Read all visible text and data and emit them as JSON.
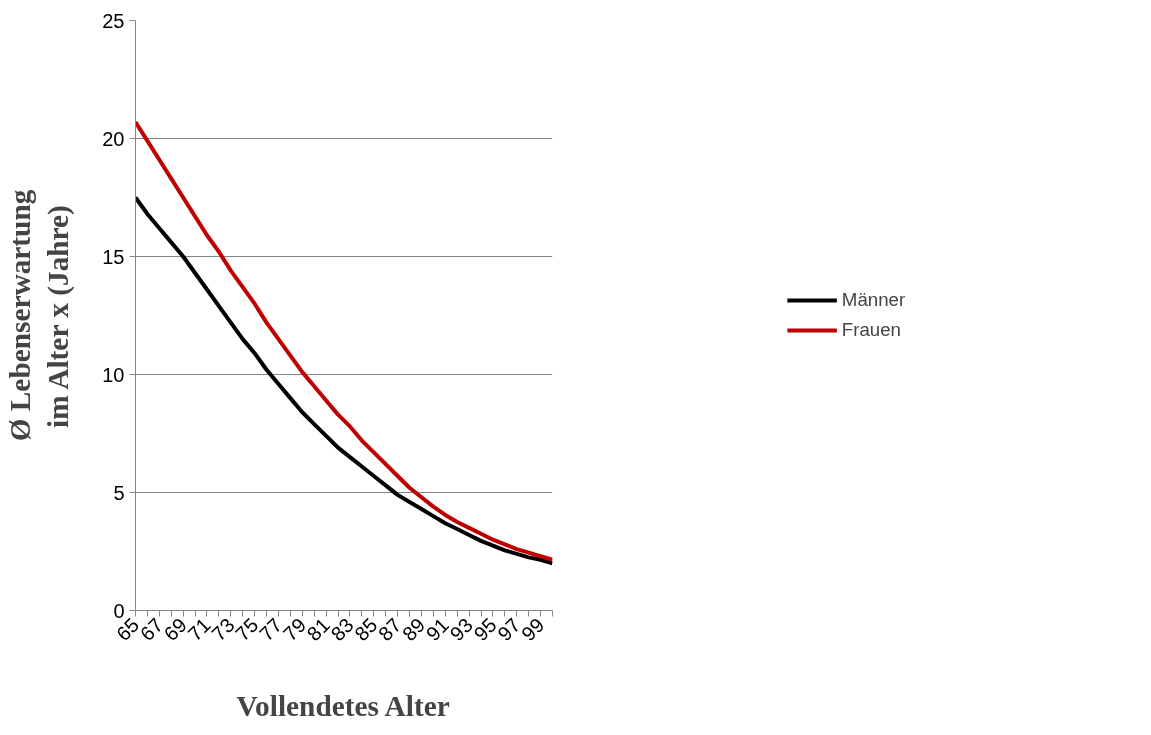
{
  "chart_data": {
    "type": "line",
    "xlabel": "Vollendetes Alter",
    "ylabel": "Ø Lebenserwartung\nim Alter x (Jahre)",
    "categories": [
      "65",
      null,
      "67",
      null,
      "69",
      null,
      "71",
      null,
      "73",
      null,
      "75",
      null,
      "77",
      null,
      "79",
      null,
      "81",
      null,
      "83",
      null,
      "85",
      null,
      "87",
      null,
      "89",
      null,
      "91",
      null,
      "93",
      null,
      "95",
      null,
      "97",
      null,
      "99",
      null
    ],
    "series": [
      {
        "name": "Männer",
        "color": "#000000",
        "values": [
          17.5,
          16.8,
          16.2,
          15.6,
          15.0,
          14.3,
          13.6,
          12.9,
          12.2,
          11.5,
          10.9,
          10.2,
          9.6,
          9.0,
          8.4,
          7.9,
          7.4,
          6.9,
          6.5,
          6.1,
          5.7,
          5.3,
          4.9,
          4.6,
          4.3,
          4.0,
          3.7,
          3.45,
          3.2,
          2.95,
          2.75,
          2.55,
          2.4,
          2.25,
          2.15,
          2.0
        ]
      },
      {
        "name": "Frauen",
        "color": "#c00000",
        "values": [
          20.7,
          19.9,
          19.1,
          18.3,
          17.5,
          16.7,
          15.9,
          15.2,
          14.4,
          13.7,
          13.0,
          12.2,
          11.5,
          10.8,
          10.1,
          9.5,
          8.9,
          8.3,
          7.8,
          7.2,
          6.7,
          6.2,
          5.7,
          5.2,
          4.8,
          4.4,
          4.05,
          3.75,
          3.5,
          3.25,
          3.0,
          2.8,
          2.6,
          2.45,
          2.3,
          2.15
        ]
      }
    ],
    "ylim": [
      0,
      25
    ],
    "yticks": [
      0,
      5,
      10,
      15,
      20,
      25
    ],
    "grid": "y",
    "legend": "right",
    "line_style": "solid",
    "marker": "none"
  }
}
